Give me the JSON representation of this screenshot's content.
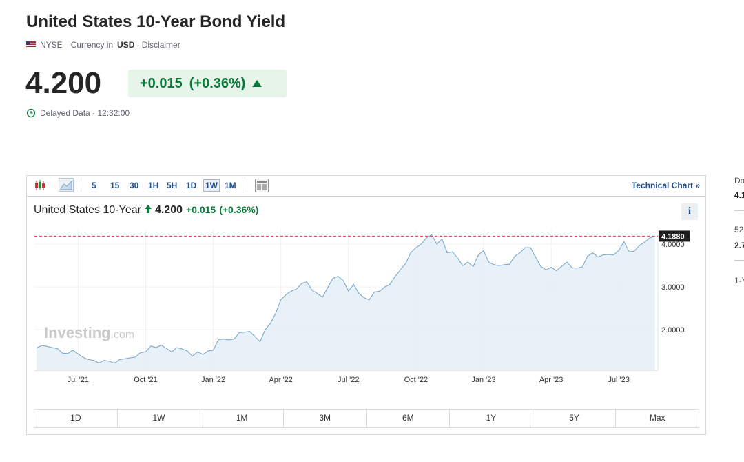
{
  "header": {
    "title": "United States 10-Year Bond Yield",
    "exchange": "NYSE",
    "currency_prefix": "Currency in",
    "currency": "USD",
    "disclaimer": "· Disclaimer"
  },
  "quote": {
    "price": "4.200",
    "change": "+0.015",
    "change_pct": "(+0.36%)",
    "status": "Delayed Data · 12:32:00"
  },
  "toolbar": {
    "intervals": [
      "5",
      "15",
      "30",
      "1H",
      "5H",
      "1D",
      "1W",
      "1M"
    ],
    "selected_interval": 6,
    "technical_chart": "Technical Chart »"
  },
  "chart_header": {
    "name": "United States 10-Year",
    "price": "4.200",
    "change": "+0.015",
    "change_pct": "(+0.36%)",
    "info": "i"
  },
  "ranges": [
    "1D",
    "1W",
    "1M",
    "3M",
    "6M",
    "1Y",
    "5Y",
    "Max"
  ],
  "sidebar": [
    "Da",
    "4.1",
    "52",
    "2.7",
    "1-Y"
  ],
  "chart_data": {
    "type": "area",
    "color": "#7ba7cc",
    "fill": "#e4eef7",
    "grid": true,
    "watermark": [
      "Investing",
      ".com"
    ],
    "current": {
      "value": 4.188,
      "label": "4.1880"
    },
    "ylim": [
      1.05,
      4.34
    ],
    "yticks": [
      {
        "value": 2,
        "label": "2.0000"
      },
      {
        "value": 3,
        "label": "3.0000"
      },
      {
        "value": 4,
        "label": "4.0000"
      }
    ],
    "categories": [
      null,
      null,
      null,
      null,
      null,
      null,
      null,
      null,
      "Jul '21",
      null,
      null,
      null,
      null,
      null,
      null,
      null,
      null,
      null,
      null,
      null,
      null,
      "Oct '21",
      null,
      null,
      null,
      null,
      null,
      null,
      null,
      null,
      null,
      null,
      null,
      null,
      "Jan '22",
      null,
      null,
      null,
      null,
      null,
      null,
      null,
      null,
      null,
      null,
      null,
      null,
      "Apr '22",
      null,
      null,
      null,
      null,
      null,
      null,
      null,
      null,
      null,
      null,
      null,
      null,
      "Jul '22",
      null,
      null,
      null,
      null,
      null,
      null,
      null,
      null,
      null,
      null,
      null,
      null,
      "Oct '22",
      null,
      null,
      null,
      null,
      null,
      null,
      null,
      null,
      null,
      null,
      null,
      null,
      "Jan '23",
      null,
      null,
      null,
      null,
      null,
      null,
      null,
      null,
      null,
      null,
      null,
      null,
      "Apr '23",
      null,
      null,
      null,
      null,
      null,
      null,
      null,
      null,
      null,
      null,
      null,
      null,
      "Jul '23",
      null,
      null,
      null,
      null,
      null,
      null,
      null
    ],
    "values": [
      1.57,
      1.63,
      1.61,
      1.58,
      1.56,
      1.45,
      1.44,
      1.52,
      1.43,
      1.35,
      1.3,
      1.28,
      1.22,
      1.28,
      1.26,
      1.22,
      1.3,
      1.32,
      1.34,
      1.36,
      1.46,
      1.48,
      1.62,
      1.58,
      1.64,
      1.56,
      1.48,
      1.58,
      1.55,
      1.5,
      1.38,
      1.48,
      1.42,
      1.5,
      1.52,
      1.77,
      1.78,
      1.76,
      1.78,
      1.93,
      1.94,
      1.96,
      1.84,
      1.72,
      2.0,
      2.15,
      2.38,
      2.7,
      2.82,
      2.9,
      2.95,
      3.08,
      3.12,
      2.92,
      2.85,
      2.76,
      2.98,
      3.2,
      3.25,
      3.15,
      2.9,
      3.06,
      2.85,
      2.75,
      2.7,
      2.88,
      2.9,
      3.0,
      3.06,
      3.25,
      3.4,
      3.55,
      3.8,
      3.92,
      4.0,
      4.15,
      4.22,
      4.0,
      4.12,
      3.8,
      3.82,
      3.68,
      3.5,
      3.58,
      3.48,
      3.75,
      3.85,
      3.58,
      3.52,
      3.5,
      3.52,
      3.53,
      3.72,
      3.8,
      3.92,
      3.92,
      3.7,
      3.48,
      3.4,
      3.46,
      3.38,
      3.48,
      3.58,
      3.45,
      3.44,
      3.47,
      3.72,
      3.8,
      3.7,
      3.75,
      3.76,
      3.75,
      3.85,
      4.06,
      3.82,
      3.84,
      3.97,
      4.05,
      4.15,
      4.19
    ]
  }
}
